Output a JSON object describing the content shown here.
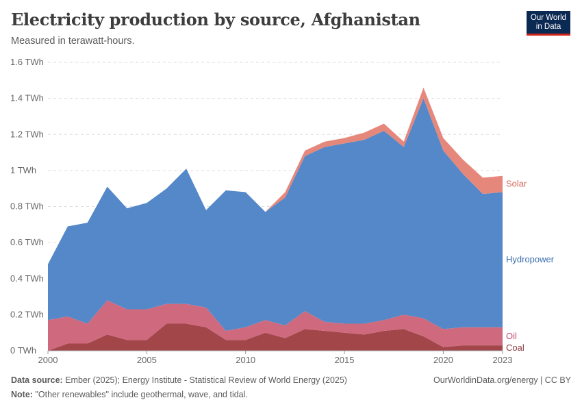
{
  "header": {
    "title": "Electricity production by source, Afghanistan",
    "subtitle": "Measured in terawatt-hours.",
    "logo_line1": "Our World",
    "logo_line2": "in Data"
  },
  "footer": {
    "source_label": "Data source:",
    "source_text": "Ember (2025); Energy Institute - Statistical Review of World Energy (2025)",
    "note_label": "Note:",
    "note_text": "\"Other renewables\" include geothermal, wave, and tidal.",
    "site_text": "OurWorldinData.org/energy | CC BY"
  },
  "chart_data": {
    "type": "area",
    "stacked": true,
    "unit": "TWh",
    "ylim": [
      0,
      1.6
    ],
    "yticks": [
      0,
      0.2,
      0.4,
      0.6,
      0.8,
      1.0,
      1.2,
      1.4,
      1.6
    ],
    "ytick_labels": [
      "0 TWh",
      "0.2 TWh",
      "0.4 TWh",
      "0.6 TWh",
      "0.8 TWh",
      "1 TWh",
      "1.2 TWh",
      "1.4 TWh",
      "1.6 TWh"
    ],
    "xticks": [
      2000,
      2005,
      2010,
      2015,
      2020,
      2023
    ],
    "x": [
      2000,
      2001,
      2002,
      2003,
      2004,
      2005,
      2006,
      2007,
      2008,
      2009,
      2010,
      2011,
      2012,
      2013,
      2014,
      2015,
      2016,
      2017,
      2018,
      2019,
      2020,
      2021,
      2022,
      2023
    ],
    "grid": true,
    "legend": "right-side labels",
    "series": [
      {
        "name": "Coal",
        "color": "#a2464a",
        "values": [
          0.0,
          0.04,
          0.04,
          0.09,
          0.06,
          0.06,
          0.15,
          0.15,
          0.13,
          0.06,
          0.06,
          0.1,
          0.07,
          0.12,
          0.11,
          0.1,
          0.09,
          0.11,
          0.12,
          0.08,
          0.02,
          0.03,
          0.03,
          0.03
        ]
      },
      {
        "name": "Oil",
        "color": "#cf6a7e",
        "values": [
          0.17,
          0.15,
          0.11,
          0.19,
          0.17,
          0.17,
          0.11,
          0.11,
          0.11,
          0.05,
          0.07,
          0.07,
          0.07,
          0.1,
          0.05,
          0.05,
          0.06,
          0.06,
          0.08,
          0.1,
          0.1,
          0.1,
          0.1,
          0.1
        ]
      },
      {
        "name": "Hydropower",
        "color": "#5488c8",
        "values": [
          0.31,
          0.5,
          0.56,
          0.63,
          0.56,
          0.59,
          0.64,
          0.75,
          0.54,
          0.78,
          0.75,
          0.6,
          0.71,
          0.86,
          0.97,
          1.0,
          1.02,
          1.05,
          0.93,
          1.22,
          0.99,
          0.85,
          0.74,
          0.75
        ]
      },
      {
        "name": "Solar",
        "color": "#e6877c",
        "values": [
          0,
          0,
          0,
          0,
          0,
          0,
          0,
          0,
          0,
          0,
          0,
          0,
          0.03,
          0.03,
          0.03,
          0.03,
          0.04,
          0.04,
          0.03,
          0.06,
          0.07,
          0.08,
          0.09,
          0.09
        ]
      }
    ]
  }
}
